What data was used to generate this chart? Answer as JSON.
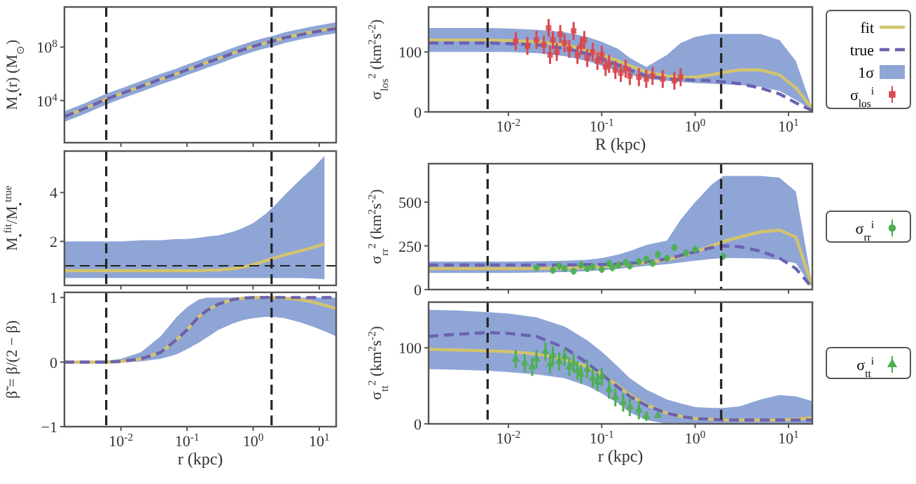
{
  "chart_data": [
    {
      "type": "line",
      "ylabel": "M$_{•}$(r) (M$_{⊙}$)",
      "log": "xy",
      "xlim": [
        0.0014,
        18
      ],
      "ylim": [
        7,
        100000000000
      ],
      "tick_labels": "y",
      "xticks": [
        {
          "value": 0.01,
          "label": null
        },
        {
          "value": 0.1,
          "label": null
        },
        {
          "value": 1,
          "label": null
        },
        {
          "value": 10,
          "label": null
        }
      ],
      "yticks": [
        {
          "value": 10000,
          "label": "10$^{4}$"
        },
        {
          "value": 100000000,
          "label": "10$^{8}$"
        }
      ],
      "x": [
        0.0014,
        0.003,
        0.006,
        0.01,
        0.02,
        0.04,
        0.07,
        0.1,
        0.15,
        0.2,
        0.3,
        0.5,
        0.7,
        1,
        1.5,
        2,
        3,
        5,
        8,
        12,
        18
      ],
      "ref_lines": [
        {
          "axis": "x",
          "value": 0.006,
          "color": "#222222",
          "line_style": "dashed"
        },
        {
          "axis": "x",
          "value": 1.9,
          "color": "#222222",
          "line_style": "dashed"
        }
      ],
      "series": [
        {
          "color": "#d2c36e",
          "values": [
            630,
            2800,
            12600,
            32000,
            112000,
            400000,
            1000000,
            2000000,
            4000000,
            7100000,
            14000000,
            35000000,
            63000000,
            112000000,
            200000000,
            280000000,
            500000000,
            890000000,
            1400000000,
            2000000000,
            2800000000
          ],
          "lower": [
            250,
            1100,
            5000,
            13000,
            45000,
            160000,
            400000,
            800000,
            1600000,
            2800000,
            5600000,
            14000000,
            25000000,
            45000000,
            80000000,
            110000000,
            200000000,
            360000000,
            560000000,
            800000000,
            1100000000
          ],
          "upper": [
            1600,
            7000,
            32000,
            80000,
            280000,
            1000000,
            2500000,
            5000000,
            10000000,
            18000000,
            35000000,
            88000000,
            160000000,
            280000000,
            500000000,
            700000000,
            1250000000,
            2200000000,
            3500000000,
            5000000000,
            7000000000
          ]
        },
        {
          "color": "#6b62b0",
          "line_style": "dashed",
          "values": [
            630,
            2800,
            12600,
            32000,
            112000,
            400000,
            1000000,
            2000000,
            4000000,
            7100000,
            14000000,
            35000000,
            63000000,
            112000000,
            200000000,
            280000000,
            500000000,
            800000000,
            1300000000,
            1800000000,
            2400000000
          ]
        }
      ]
    },
    {
      "type": "line",
      "xlabel": "R (kpc)",
      "ylabel": "σ$_{los}$$^{2}$ (km$^{2}$s$^{-2}$)",
      "log": "x",
      "xlim": [
        0.0014,
        18
      ],
      "ylim": [
        0,
        175
      ],
      "legend": "right",
      "annotations": [
        "1σ"
      ],
      "xticks": [
        {
          "value": 0.01,
          "label": "10$^{-2}$"
        },
        {
          "value": 0.1,
          "label": "10$^{-1}$"
        },
        {
          "value": 1,
          "label": "10$^{0}$"
        },
        {
          "value": 10,
          "label": "10$^{1}$"
        }
      ],
      "yticks": [
        0,
        100
      ],
      "x": [
        0.0014,
        0.003,
        0.006,
        0.01,
        0.02,
        0.04,
        0.07,
        0.1,
        0.15,
        0.2,
        0.3,
        0.5,
        0.7,
        1,
        1.5,
        2,
        3,
        5,
        8,
        12,
        18
      ],
      "ref_lines": [
        {
          "axis": "x",
          "value": 0.006,
          "color": "#222222",
          "line_style": "dashed"
        },
        {
          "axis": "x",
          "value": 1.9,
          "color": "#222222",
          "line_style": "dashed"
        }
      ],
      "series": [
        {
          "name": "fit",
          "color": "#d2c36e",
          "values": [
            120,
            120,
            120,
            119,
            117,
            112,
            103,
            95,
            85,
            77,
            67,
            60,
            58,
            58,
            62,
            66,
            70,
            70,
            62,
            40,
            5
          ],
          "lower": [
            100,
            100,
            100,
            100,
            98,
            93,
            85,
            77,
            68,
            62,
            55,
            52,
            50,
            48,
            47,
            46,
            45,
            42,
            35,
            20,
            2
          ],
          "upper": [
            140,
            140,
            140,
            139,
            137,
            133,
            125,
            117,
            105,
            90,
            75,
            95,
            115,
            125,
            130,
            130,
            130,
            130,
            120,
            85,
            5
          ]
        },
        {
          "name": "true",
          "color": "#6b62b0",
          "line_style": "dashed",
          "values": [
            115,
            115,
            115,
            114,
            112,
            106,
            97,
            88,
            78,
            70,
            60,
            55,
            54,
            53,
            52,
            50,
            47,
            40,
            30,
            15,
            2
          ]
        },
        {
          "name": "σ$_{los}$$^{i}$",
          "type": "scatter",
          "marker": "square",
          "color": "#d9484f",
          "x": [
            0.012,
            0.016,
            0.02,
            0.024,
            0.027,
            0.028,
            0.03,
            0.033,
            0.036,
            0.04,
            0.045,
            0.05,
            0.055,
            0.06,
            0.065,
            0.07,
            0.08,
            0.09,
            0.1,
            0.11,
            0.12,
            0.14,
            0.16,
            0.18,
            0.2,
            0.25,
            0.3,
            0.35,
            0.45,
            0.6,
            0.7
          ],
          "values": [
            118,
            110,
            120,
            112,
            140,
            95,
            120,
            100,
            130,
            115,
            105,
            135,
            95,
            110,
            120,
            90,
            100,
            85,
            95,
            75,
            80,
            70,
            65,
            72,
            60,
            58,
            55,
            60,
            55,
            52,
            58
          ],
          "errors": [
            15,
            15,
            15,
            15,
            15,
            15,
            15,
            15,
            15,
            15,
            15,
            15,
            15,
            15,
            15,
            15,
            15,
            15,
            15,
            15,
            15,
            15,
            15,
            15,
            15,
            15,
            15,
            15,
            15,
            15,
            15
          ]
        }
      ]
    },
    {
      "type": "line",
      "ylabel": "M$_{•}$$^{fit}$/M$_{•}$$^{true}$",
      "log": "x",
      "xlim": [
        0.0014,
        18
      ],
      "ylim": [
        0.2,
        5.7
      ],
      "tick_labels": "y",
      "xticks": [
        {
          "value": 0.01,
          "label": null
        },
        {
          "value": 0.1,
          "label": null
        },
        {
          "value": 1,
          "label": null
        },
        {
          "value": 10,
          "label": null
        }
      ],
      "yticks": [
        2,
        4
      ],
      "x": [
        0.0014,
        0.003,
        0.006,
        0.01,
        0.02,
        0.04,
        0.07,
        0.1,
        0.15,
        0.2,
        0.3,
        0.5,
        0.7,
        1,
        1.5,
        2,
        3,
        5,
        8,
        12
      ],
      "ref_lines": [
        {
          "axis": "x",
          "value": 0.006,
          "color": "#222222",
          "line_style": "dashed"
        },
        {
          "axis": "x",
          "value": 1.9,
          "color": "#222222",
          "line_style": "dashed"
        },
        {
          "axis": "y",
          "value": 1,
          "color": "#222222",
          "line_style": "dashed"
        }
      ],
      "series": [
        {
          "color": "#d2c36e",
          "values": [
            0.8,
            0.8,
            0.8,
            0.8,
            0.8,
            0.8,
            0.8,
            0.8,
            0.8,
            0.82,
            0.83,
            0.88,
            0.95,
            1.05,
            1.2,
            1.3,
            1.45,
            1.6,
            1.75,
            1.9
          ],
          "lower": [
            0.5,
            0.5,
            0.5,
            0.5,
            0.5,
            0.5,
            0.5,
            0.5,
            0.5,
            0.5,
            0.5,
            0.5,
            0.5,
            0.5,
            0.5,
            0.5,
            0.5,
            0.5,
            0.48,
            0.45
          ],
          "upper": [
            2.0,
            2.0,
            2.0,
            2.0,
            2.05,
            2.05,
            2.1,
            2.1,
            2.15,
            2.2,
            2.25,
            2.4,
            2.55,
            2.75,
            3.1,
            3.4,
            3.9,
            4.5,
            5.0,
            5.5
          ]
        }
      ]
    },
    {
      "type": "line",
      "ylabel": "σ$_{rr}$$^{2}$ (km$^{2}$s$^{-2}$)",
      "log": "x",
      "xlim": [
        0.0014,
        18
      ],
      "ylim": [
        0,
        720
      ],
      "tick_labels": "y",
      "legend": "right",
      "xticks": [
        {
          "value": 0.01,
          "label": null
        },
        {
          "value": 0.1,
          "label": null
        },
        {
          "value": 1,
          "label": null
        },
        {
          "value": 10,
          "label": null
        }
      ],
      "yticks": [
        0,
        250,
        500
      ],
      "x": [
        0.0014,
        0.003,
        0.006,
        0.01,
        0.02,
        0.04,
        0.07,
        0.1,
        0.15,
        0.2,
        0.3,
        0.5,
        0.7,
        1,
        1.5,
        2,
        3,
        5,
        8,
        12,
        18
      ],
      "ref_lines": [
        {
          "axis": "x",
          "value": 0.006,
          "color": "#222222",
          "line_style": "dashed"
        },
        {
          "axis": "x",
          "value": 1.9,
          "color": "#222222",
          "line_style": "dashed"
        }
      ],
      "series": [
        {
          "color": "#d2c36e",
          "values": [
            120,
            120,
            120,
            120,
            121,
            122,
            125,
            130,
            138,
            145,
            155,
            170,
            190,
            215,
            250,
            275,
            300,
            330,
            340,
            300,
            20
          ],
          "lower": [
            95,
            95,
            95,
            95,
            97,
            100,
            105,
            110,
            118,
            125,
            135,
            145,
            155,
            165,
            175,
            180,
            180,
            178,
            170,
            150,
            10
          ],
          "upper": [
            160,
            160,
            160,
            160,
            162,
            165,
            170,
            180,
            200,
            220,
            255,
            280,
            400,
            500,
            600,
            650,
            650,
            650,
            640,
            560,
            20
          ]
        },
        {
          "color": "#6b62b0",
          "line_style": "dashed",
          "values": [
            140,
            140,
            140,
            140,
            140,
            141,
            142,
            143,
            146,
            150,
            158,
            175,
            195,
            215,
            240,
            250,
            245,
            220,
            180,
            120,
            10
          ]
        },
        {
          "name": "σ$_{rr}$$^{i}$",
          "type": "scatter",
          "marker": "circle",
          "color": "#4caf50",
          "x": [
            0.02,
            0.03,
            0.035,
            0.04,
            0.05,
            0.06,
            0.07,
            0.08,
            0.1,
            0.12,
            0.13,
            0.15,
            0.18,
            0.2,
            0.25,
            0.3,
            0.35,
            0.4,
            0.5,
            0.6,
            0.8,
            1,
            2
          ],
          "values": [
            125,
            110,
            135,
            120,
            105,
            140,
            120,
            130,
            115,
            150,
            125,
            140,
            155,
            135,
            160,
            175,
            150,
            200,
            180,
            240,
            210,
            230,
            190
          ],
          "errors": [
            20,
            20,
            20,
            20,
            20,
            20,
            20,
            20,
            20,
            20,
            20,
            20,
            20,
            20,
            20,
            20,
            20,
            20,
            20,
            20,
            20,
            20,
            20
          ]
        }
      ]
    },
    {
      "type": "line",
      "xlabel": "r (kpc)",
      "ylabel": "β̃ = β/(2 − β)",
      "log": "x",
      "xlim": [
        0.0014,
        18
      ],
      "ylim": [
        -1,
        1.08
      ],
      "xticks": [
        {
          "value": 0.01,
          "label": "10$^{-2}$"
        },
        {
          "value": 0.1,
          "label": "10$^{-1}$"
        },
        {
          "value": 1,
          "label": "10$^{0}$"
        },
        {
          "value": 10,
          "label": "10$^{1}$"
        }
      ],
      "yticks": [
        {
          "value": -1,
          "label": "−1"
        },
        0,
        1
      ],
      "x": [
        0.0014,
        0.003,
        0.006,
        0.01,
        0.02,
        0.04,
        0.07,
        0.1,
        0.15,
        0.2,
        0.3,
        0.5,
        0.7,
        1,
        1.5,
        2,
        3,
        5,
        8,
        12,
        18
      ],
      "ref_lines": [
        {
          "axis": "x",
          "value": 0.006,
          "color": "#222222",
          "line_style": "dashed"
        },
        {
          "axis": "x",
          "value": 1.9,
          "color": "#222222",
          "line_style": "dashed"
        }
      ],
      "series": [
        {
          "color": "#d2c36e",
          "values": [
            0,
            0,
            0,
            0.01,
            0.05,
            0.15,
            0.35,
            0.5,
            0.7,
            0.8,
            0.9,
            0.97,
            0.99,
            1.0,
            1.0,
            1.0,
            0.99,
            0.97,
            0.93,
            0.88,
            0.83
          ],
          "lower": [
            0,
            0,
            0,
            0,
            0.01,
            0.05,
            0.12,
            0.2,
            0.3,
            0.38,
            0.5,
            0.6,
            0.65,
            0.68,
            0.7,
            0.7,
            0.68,
            0.62,
            0.55,
            0.48,
            0.4
          ],
          "upper": [
            0,
            0,
            0.02,
            0.05,
            0.15,
            0.4,
            0.7,
            0.85,
            0.97,
            1.0,
            1.0,
            1.0,
            1.0,
            1.0,
            1.0,
            1.0,
            1.0,
            1.0,
            1.0,
            1.0,
            1.0
          ]
        },
        {
          "color": "#6b62b0",
          "line_style": "dashed",
          "values": [
            0,
            0,
            0,
            0.01,
            0.05,
            0.15,
            0.35,
            0.5,
            0.7,
            0.8,
            0.9,
            0.97,
            0.99,
            1.0,
            1.0,
            1.0,
            1.0,
            1.0,
            1.0,
            1.0,
            1.0
          ]
        }
      ]
    },
    {
      "type": "line",
      "xlabel": "r (kpc)",
      "ylabel": "σ$_{tt}$$^{2}$ (km$^{2}$s$^{-2}$)",
      "log": "x",
      "xlim": [
        0.0014,
        18
      ],
      "ylim": [
        0,
        160
      ],
      "legend": "right",
      "xticks": [
        {
          "value": 0.01,
          "label": "10$^{-2}$"
        },
        {
          "value": 0.1,
          "label": "10$^{-1}$"
        },
        {
          "value": 1,
          "label": "10$^{0}$"
        },
        {
          "value": 10,
          "label": "10$^{1}$"
        }
      ],
      "yticks": [
        0,
        100
      ],
      "x": [
        0.0014,
        0.003,
        0.006,
        0.01,
        0.02,
        0.04,
        0.07,
        0.1,
        0.15,
        0.2,
        0.3,
        0.5,
        0.7,
        1,
        1.5,
        2,
        3,
        5,
        8,
        12,
        18
      ],
      "ref_lines": [
        {
          "axis": "x",
          "value": 0.006,
          "color": "#222222",
          "line_style": "dashed"
        },
        {
          "axis": "x",
          "value": 1.9,
          "color": "#222222",
          "line_style": "dashed"
        }
      ],
      "series": [
        {
          "color": "#d2c36e",
          "values": [
            98,
            97,
            96,
            95,
            92,
            85,
            75,
            65,
            50,
            38,
            25,
            14,
            10,
            7,
            6,
            5,
            5,
            5,
            5,
            6,
            8
          ],
          "lower": [
            72,
            71,
            70,
            68,
            65,
            60,
            50,
            40,
            27,
            15,
            5,
            0,
            0,
            0,
            0,
            0,
            0,
            0,
            0,
            0,
            0
          ],
          "upper": [
            150,
            149,
            147,
            145,
            140,
            128,
            110,
            95,
            75,
            60,
            45,
            32,
            27,
            22,
            21,
            21,
            23,
            32,
            38,
            36,
            30
          ]
        },
        {
          "color": "#6b62b0",
          "line_style": "dashed",
          "values": [
            115,
            118,
            120,
            119,
            115,
            100,
            80,
            65,
            48,
            36,
            24,
            14,
            10,
            7,
            6,
            5,
            5,
            5,
            5,
            5,
            5
          ]
        },
        {
          "name": "σ$_{tt}$$^{i}$",
          "type": "scatter",
          "marker": "triangle",
          "color": "#4caf50",
          "x": [
            0.012,
            0.015,
            0.018,
            0.02,
            0.025,
            0.028,
            0.03,
            0.035,
            0.04,
            0.045,
            0.05,
            0.055,
            0.06,
            0.07,
            0.08,
            0.09,
            0.1,
            0.12,
            0.14,
            0.17,
            0.2,
            0.25,
            0.3,
            0.4
          ],
          "values": [
            85,
            80,
            75,
            85,
            95,
            78,
            90,
            82,
            88,
            75,
            80,
            70,
            65,
            72,
            60,
            55,
            62,
            45,
            35,
            28,
            22,
            18,
            10,
            11
          ],
          "errors": [
            12,
            12,
            12,
            12,
            12,
            12,
            12,
            12,
            12,
            12,
            12,
            12,
            12,
            12,
            12,
            12,
            12,
            12,
            12,
            12,
            12,
            12,
            6,
            null
          ]
        }
      ]
    }
  ]
}
